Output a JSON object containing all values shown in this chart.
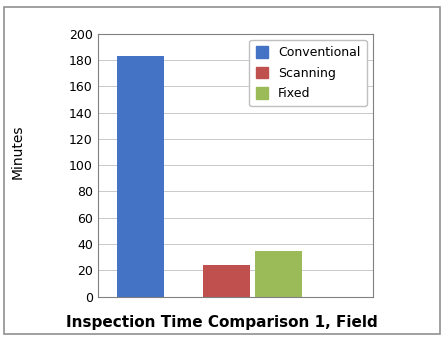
{
  "title": "Inspection Time Comparison 1, Field",
  "ylabel": "Minutes",
  "categories": [
    "Conventional",
    "Scanning",
    "Fixed"
  ],
  "values": [
    183,
    24,
    35
  ],
  "bar_colors": [
    "#4472C4",
    "#C0504D",
    "#9BBB59"
  ],
  "legend_labels": [
    "Conventional",
    "Scanning",
    "Fixed"
  ],
  "ylim": [
    0,
    200
  ],
  "yticks": [
    0,
    20,
    40,
    60,
    80,
    100,
    120,
    140,
    160,
    180,
    200
  ],
  "bar_width": 0.55,
  "background_color": "#FFFFFF",
  "title_fontsize": 11,
  "title_fontweight": "bold",
  "ylabel_fontsize": 10,
  "tick_fontsize": 9,
  "legend_fontsize": 9,
  "grid_color": "#C0C0C0",
  "bar_positions": [
    0.7,
    1.7,
    2.3
  ]
}
